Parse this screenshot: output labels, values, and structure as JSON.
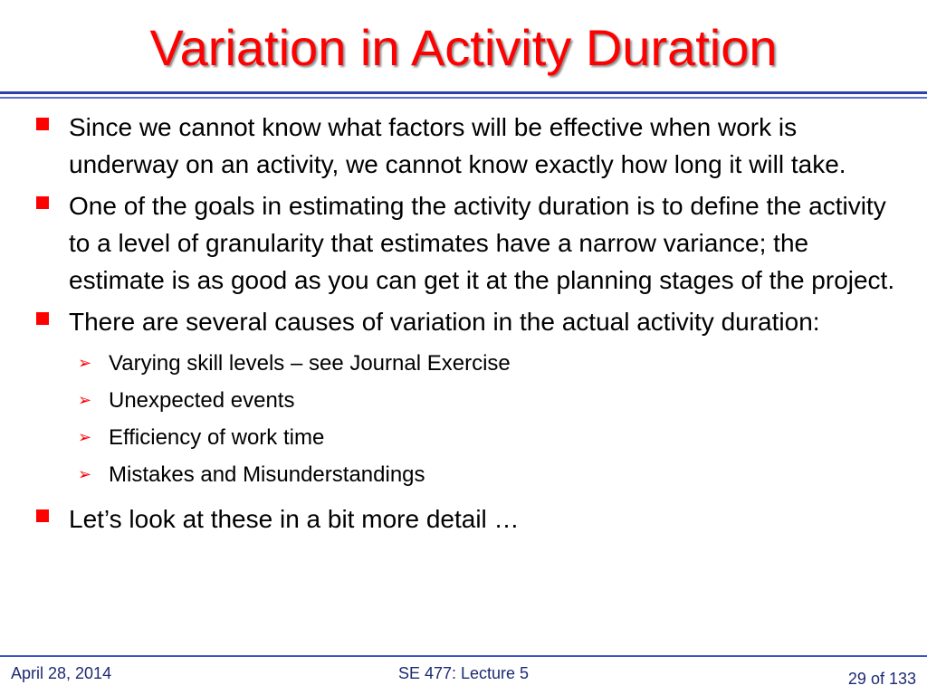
{
  "slide": {
    "title": "Variation in Activity Duration",
    "bullets": [
      "Since we cannot know what factors will be effective when work is underway on an activity, we cannot know exactly how long it will take.",
      "One of the goals in estimating the  activity duration is to define the activity to a level of granularity that estimates have a narrow variance; the estimate is as good as you can get it at the planning stages of the project.",
      "There are several causes of variation in the actual activity duration:"
    ],
    "sub_bullets": [
      "Varying skill levels – see Journal Exercise",
      "Unexpected events",
      "Efficiency of work time",
      "Mistakes and Misunderstandings"
    ],
    "closing_bullet": "Let’s look at these in a bit more detail …",
    "bullet_marker_color": "#ff0000",
    "title_color": "#ff0000",
    "rule_color": "#2f3fae"
  },
  "footer": {
    "date": "April 28, 2014",
    "course": "SE 477: Lecture 5",
    "page": "29 of 133"
  },
  "icons": {
    "bullet_marker": "square-bullet-icon",
    "sub_bullet_marker": "arrow-bullet-icon",
    "sub_bullet_glyph": "➢"
  }
}
